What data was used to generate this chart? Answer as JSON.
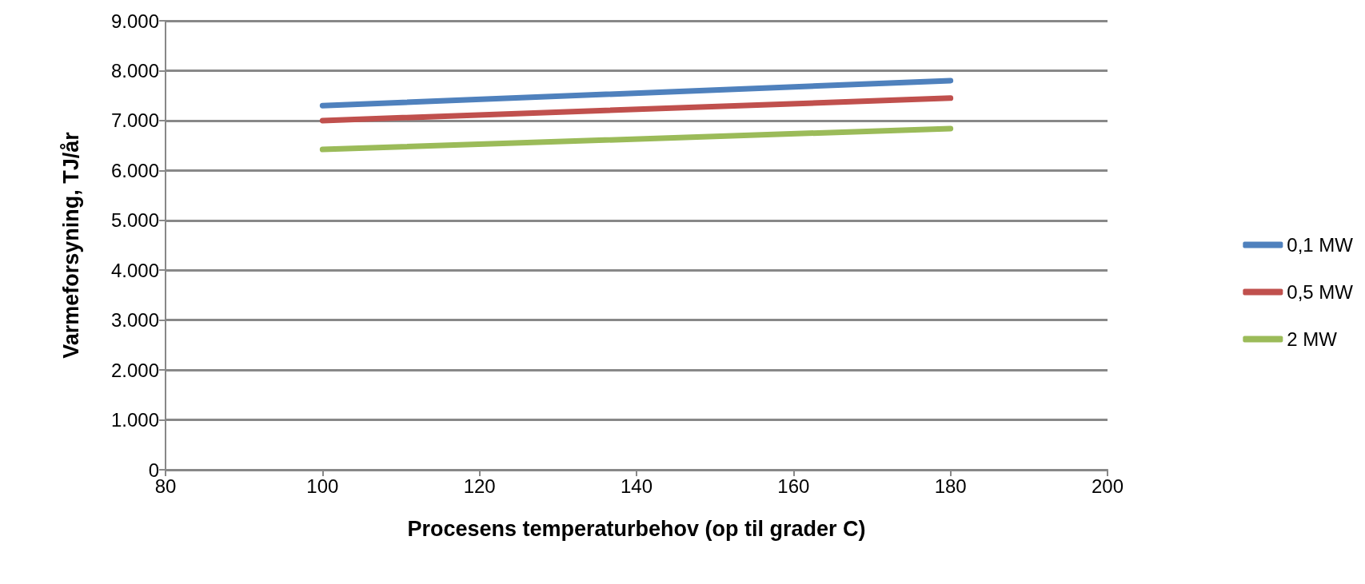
{
  "chart_data": {
    "type": "line",
    "xlabel": "Procesens temperaturbehov (op til grader C)",
    "ylabel": "Varmeforsyning, TJ/år",
    "x": [
      100,
      180
    ],
    "series": [
      {
        "name": "0,1 MW",
        "color": "#4f81bd",
        "values": [
          7300,
          7800
        ]
      },
      {
        "name": "0,5 MW",
        "color": "#c0504d",
        "values": [
          7000,
          7450
        ]
      },
      {
        "name": "2 MW",
        "color": "#9bbb59",
        "values": [
          6420,
          6840
        ]
      }
    ],
    "xlim": [
      80,
      200
    ],
    "xticks": [
      80,
      100,
      120,
      140,
      160,
      180,
      200
    ],
    "ylim": [
      0,
      9000
    ],
    "yticks": [
      {
        "value": 0,
        "label": "0"
      },
      {
        "value": 1000,
        "label": "1.000"
      },
      {
        "value": 2000,
        "label": "2.000"
      },
      {
        "value": 3000,
        "label": "3.000"
      },
      {
        "value": 4000,
        "label": "4.000"
      },
      {
        "value": 5000,
        "label": "5.000"
      },
      {
        "value": 6000,
        "label": "6.000"
      },
      {
        "value": 7000,
        "label": "7.000"
      },
      {
        "value": 8000,
        "label": "8.000"
      },
      {
        "value": 9000,
        "label": "9.000"
      }
    ],
    "grid": "y",
    "legend": "right",
    "marker": "none",
    "line_style": "solid"
  }
}
